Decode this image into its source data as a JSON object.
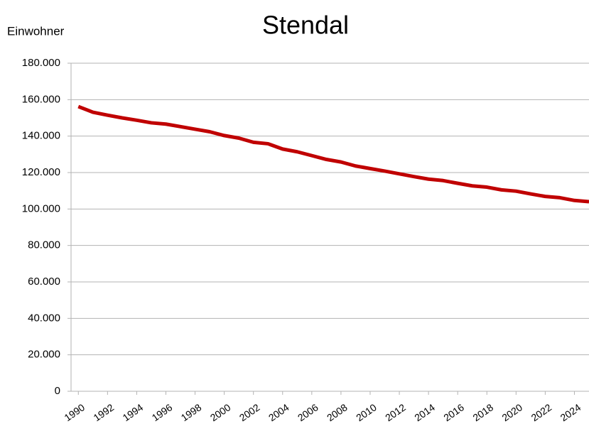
{
  "chart_data": {
    "type": "line",
    "title": "Stendal",
    "y_label": "Einwohner",
    "x": [
      1990,
      1991,
      1992,
      1993,
      1994,
      1995,
      1996,
      1997,
      1998,
      1999,
      2000,
      2001,
      2002,
      2003,
      2004,
      2005,
      2006,
      2007,
      2008,
      2009,
      2010,
      2011,
      2012,
      2013,
      2014,
      2015,
      2016,
      2017,
      2018,
      2019,
      2020,
      2021,
      2022,
      2023,
      2024,
      2025
    ],
    "series": [
      {
        "name": "Stendal",
        "color": "#c00000",
        "values": [
          156200,
          153100,
          151500,
          150000,
          148700,
          147300,
          146600,
          145200,
          143800,
          142400,
          140300,
          138900,
          136600,
          135800,
          132900,
          131400,
          129300,
          127200,
          125800,
          123600,
          122200,
          120800,
          119300,
          117800,
          116400,
          115600,
          114100,
          112700,
          112000,
          110500,
          109800,
          108300,
          106900,
          106200,
          104700,
          104000
        ]
      }
    ],
    "xlim": [
      1989.5,
      2025
    ],
    "xticks": [
      1990,
      1992,
      1994,
      1996,
      1998,
      2000,
      2002,
      2004,
      2006,
      2008,
      2010,
      2012,
      2014,
      2016,
      2018,
      2020,
      2022,
      2024
    ],
    "ylim": [
      0,
      180000
    ],
    "yticks": [
      0,
      {
        "value": 20000,
        "label": "20.000"
      },
      {
        "value": 40000,
        "label": "40.000"
      },
      {
        "value": 60000,
        "label": "60.000"
      },
      {
        "value": 80000,
        "label": "80.000"
      },
      {
        "value": 100000,
        "label": "100.000"
      },
      {
        "value": 120000,
        "label": "120.000"
      },
      {
        "value": 140000,
        "label": "140.000"
      },
      {
        "value": 160000,
        "label": "160.000"
      },
      {
        "value": 180000,
        "label": "180.000"
      }
    ],
    "grid": true
  }
}
